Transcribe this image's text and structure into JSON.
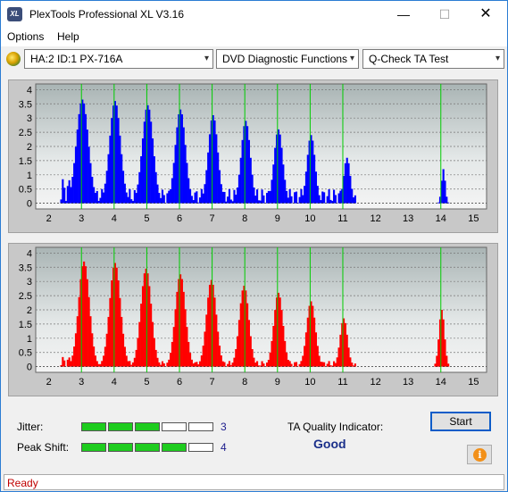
{
  "window": {
    "title": "PlexTools Professional XL V3.16",
    "icon_text": "XL",
    "min_glyph": "—",
    "max_glyph": "☐",
    "close_glyph": "✕"
  },
  "menu": {
    "items": [
      "Options",
      "Help"
    ]
  },
  "toolbar": {
    "drive": "HA:2 ID:1  PX-716A",
    "function": "DVD Diagnostic Functions",
    "test": "Q-Check TA Test",
    "arrow": "▾"
  },
  "colors": {
    "top_series": "#0000ff",
    "bottom_series": "#ff0000",
    "peak_lines": "#00cc00",
    "plot_bg": "#dcdcdc"
  },
  "chart_data": [
    {
      "type": "bar",
      "series_color": "#0000ff",
      "xlim": [
        1.6,
        15.4
      ],
      "ylim": [
        -0.2,
        4.2
      ],
      "x_ticks": [
        2,
        3,
        4,
        5,
        6,
        7,
        8,
        9,
        10,
        11,
        12,
        13,
        14,
        15
      ],
      "y_ticks": [
        0,
        0.5,
        1,
        1.5,
        2,
        2.5,
        3,
        3.5,
        4
      ],
      "y_tick_labels": [
        "0",
        "0.5",
        "1",
        "1.5",
        "2",
        "2.5",
        "3",
        "3.5",
        "4"
      ],
      "peak_markers": [
        3,
        4,
        5,
        6,
        7,
        8,
        9,
        10,
        11,
        14
      ],
      "peaks": [
        {
          "x": 3.0,
          "height": 3.65,
          "width": 0.33
        },
        {
          "x": 4.0,
          "height": 3.6,
          "width": 0.3
        },
        {
          "x": 5.0,
          "height": 3.45,
          "width": 0.3
        },
        {
          "x": 6.0,
          "height": 3.3,
          "width": 0.28
        },
        {
          "x": 7.0,
          "height": 3.1,
          "width": 0.26
        },
        {
          "x": 8.0,
          "height": 2.9,
          "width": 0.25
        },
        {
          "x": 9.0,
          "height": 2.6,
          "width": 0.24
        },
        {
          "x": 10.0,
          "height": 2.4,
          "width": 0.22
        },
        {
          "x": 11.1,
          "height": 1.6,
          "width": 0.18
        },
        {
          "x": 14.05,
          "height": 1.2,
          "width": 0.1
        }
      ],
      "floor": 0.5
    },
    {
      "type": "bar",
      "series_color": "#ff0000",
      "xlim": [
        1.6,
        15.4
      ],
      "ylim": [
        -0.2,
        4.2
      ],
      "x_ticks": [
        2,
        3,
        4,
        5,
        6,
        7,
        8,
        9,
        10,
        11,
        12,
        13,
        14,
        15
      ],
      "y_ticks": [
        0,
        0.5,
        1,
        1.5,
        2,
        2.5,
        3,
        3.5,
        4
      ],
      "y_tick_labels": [
        "0",
        "0.5",
        "1",
        "1.5",
        "2",
        "2.5",
        "3",
        "3.5",
        "4"
      ],
      "peak_markers": [
        3,
        4,
        5,
        6,
        7,
        8,
        9,
        10,
        11,
        14
      ],
      "peaks": [
        {
          "x": 3.05,
          "height": 3.7,
          "width": 0.3
        },
        {
          "x": 4.0,
          "height": 3.65,
          "width": 0.3
        },
        {
          "x": 4.95,
          "height": 3.45,
          "width": 0.29
        },
        {
          "x": 6.0,
          "height": 3.25,
          "width": 0.28
        },
        {
          "x": 6.95,
          "height": 3.05,
          "width": 0.27
        },
        {
          "x": 7.95,
          "height": 2.85,
          "width": 0.26
        },
        {
          "x": 9.0,
          "height": 2.6,
          "width": 0.25
        },
        {
          "x": 10.0,
          "height": 2.3,
          "width": 0.24
        },
        {
          "x": 11.0,
          "height": 1.7,
          "width": 0.2
        },
        {
          "x": 14.0,
          "height": 2.0,
          "width": 0.15
        }
      ],
      "floor": 0.2
    }
  ],
  "results": {
    "jitter_label": "Jitter:",
    "jitter_value": "3",
    "jitter_level": 3,
    "peak_shift_label": "Peak Shift:",
    "peak_shift_value": "4",
    "peak_shift_level": 4,
    "meter_segments": 5,
    "ta_quality_label": "TA Quality Indicator:",
    "ta_quality_value": "Good"
  },
  "buttons": {
    "start": "Start",
    "info_glyph": "i"
  },
  "status": {
    "text": "Ready"
  }
}
